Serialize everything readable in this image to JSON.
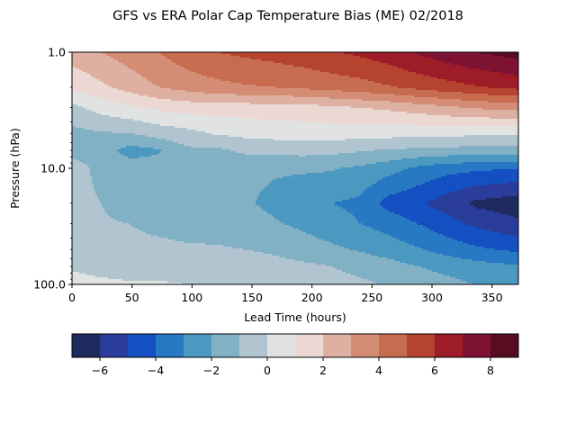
{
  "chart_data": {
    "type": "heatmap",
    "title": "GFS vs ERA Polar Cap Temperature Bias (ME) 02/2018",
    "xlabel": "Lead Time (hours)",
    "ylabel": "Pressure (hPa)",
    "xlim": [
      0,
      372
    ],
    "ylim": [
      100.0,
      1.0
    ],
    "yscale": "log",
    "x_ticks": [
      0,
      50,
      100,
      150,
      200,
      250,
      300,
      350
    ],
    "y_ticks": [
      1.0,
      10.0,
      100.0
    ],
    "y_tick_labels": [
      "1.0",
      "10.0",
      "100.0"
    ],
    "grid": false,
    "lead_times": [
      0,
      24,
      48,
      72,
      96,
      120,
      144,
      168,
      192,
      216,
      240,
      264,
      288,
      312,
      336,
      372
    ],
    "pressure_levels": [
      1,
      2,
      3,
      5,
      7,
      10,
      20,
      30,
      50,
      70,
      100
    ],
    "bias": [
      [
        2.5,
        3.0,
        3.5,
        4.0,
        4.6,
        5.0,
        5.2,
        5.4,
        5.6,
        5.9,
        6.2,
        6.6,
        7.1,
        7.6,
        8.0,
        8.4
      ],
      [
        1.2,
        1.8,
        2.4,
        3.0,
        3.4,
        3.7,
        3.9,
        4.0,
        4.2,
        4.4,
        4.6,
        4.9,
        5.3,
        5.6,
        5.9,
        6.3
      ],
      [
        -0.3,
        0.4,
        0.8,
        1.2,
        1.4,
        1.5,
        1.5,
        1.6,
        1.6,
        1.8,
        2.0,
        2.2,
        2.5,
        2.8,
        3.1,
        3.4
      ],
      [
        -1.3,
        -1.1,
        -1.0,
        -0.6,
        -0.3,
        0.1,
        0.3,
        0.4,
        0.5,
        0.5,
        0.4,
        0.4,
        0.3,
        0.3,
        0.2,
        0.2
      ],
      [
        -1.5,
        -1.5,
        -2.4,
        -2.1,
        -1.2,
        -1.2,
        -0.8,
        -0.7,
        -0.6,
        -0.7,
        -0.9,
        -1.1,
        -1.2,
        -1.3,
        -1.4,
        -1.5
      ],
      [
        -0.4,
        -1.4,
        -1.5,
        -1.6,
        -1.7,
        -1.7,
        -1.8,
        -1.9,
        -1.9,
        -1.9,
        -2.2,
        -2.6,
        -3.2,
        -3.6,
        -3.8,
        -4.0
      ],
      [
        -0.5,
        -1.0,
        -1.4,
        -1.6,
        -1.7,
        -1.8,
        -1.9,
        -2.2,
        -2.5,
        -3.0,
        -3.2,
        -4.4,
        -4.8,
        -5.5,
        -6.2,
        -6.6
      ],
      [
        -0.7,
        -0.9,
        -1.0,
        -1.2,
        -1.3,
        -1.4,
        -1.6,
        -1.9,
        -2.2,
        -2.6,
        -3.0,
        -3.4,
        -4.0,
        -4.6,
        -5.2,
        -5.8
      ],
      [
        -0.6,
        -0.7,
        -0.8,
        -0.8,
        -0.9,
        -0.9,
        -1.0,
        -1.2,
        -1.5,
        -1.8,
        -2.1,
        -2.5,
        -2.9,
        -3.4,
        -3.8,
        -4.2
      ],
      [
        -0.1,
        -0.3,
        -0.4,
        -0.4,
        -0.4,
        -0.4,
        -0.4,
        -0.6,
        -0.8,
        -1.0,
        -1.3,
        -1.6,
        -2.0,
        -2.3,
        -2.6,
        -2.9
      ],
      [
        0.3,
        0.2,
        0.1,
        0.1,
        0.0,
        0.0,
        -0.1,
        -0.2,
        -0.4,
        -0.6,
        -0.8,
        -1.1,
        -1.4,
        -1.7,
        -2.0,
        -2.3
      ]
    ],
    "colorbar": {
      "levels": [
        -7,
        -6,
        -5,
        -4,
        -3,
        -2,
        -1,
        0,
        1,
        2,
        3,
        4,
        5,
        6,
        7,
        8,
        9
      ],
      "ticks": [
        -6,
        -4,
        -2,
        0,
        2,
        4,
        6,
        8
      ],
      "tick_labels": [
        "−6",
        "−4",
        "−2",
        "0",
        "2",
        "4",
        "6",
        "8"
      ],
      "colors": [
        "#1f2a5e",
        "#2b3d9b",
        "#1450c2",
        "#2779c4",
        "#4b98c1",
        "#82b1c6",
        "#b1c5d0",
        "#e1e2e2",
        "#ecd8d2",
        "#ddb0a1",
        "#d48c75",
        "#c86c4f",
        "#b6432f",
        "#9e1c28",
        "#7d1233",
        "#570c1f"
      ],
      "placement": "bottom"
    }
  }
}
